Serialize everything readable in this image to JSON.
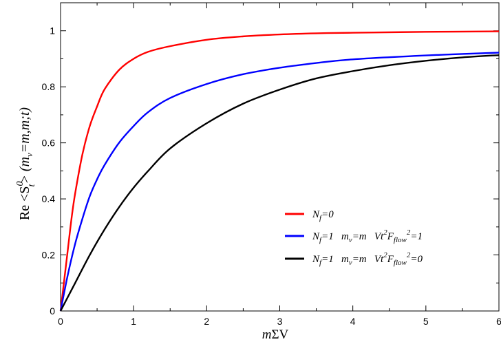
{
  "chart_data": {
    "type": "line",
    "xlabel_parts": [
      "m",
      "ΣV"
    ],
    "ylabel_parts": [
      "Re <S",
      "0",
      "t",
      "> (m",
      "v",
      "=m,m;t)"
    ],
    "xlim": [
      0,
      6
    ],
    "ylim": [
      0,
      1.1
    ],
    "xticks": [
      0,
      1,
      2,
      3,
      4,
      5,
      6
    ],
    "yticks": [
      0,
      0.2,
      0.4,
      0.6,
      0.8,
      1
    ],
    "xtick_labels": [
      "0",
      "1",
      "2",
      "3",
      "4",
      "5",
      "6"
    ],
    "ytick_labels": [
      "0",
      "0.2",
      "0.4",
      "0.6",
      "0.8",
      "1"
    ],
    "grid": false,
    "legend_position": "lower-right",
    "series": [
      {
        "name": "N_f=0",
        "legend_parts": [
          "N",
          "f",
          "=0"
        ],
        "color": "#ff0000",
        "x": [
          0,
          0.05,
          0.1,
          0.15,
          0.2,
          0.3,
          0.4,
          0.5,
          0.6,
          0.8,
          1.0,
          1.2,
          1.5,
          2.0,
          2.5,
          3.0,
          3.5,
          4.0,
          5.0,
          6.0
        ],
        "y": [
          0,
          0.11,
          0.22,
          0.33,
          0.42,
          0.56,
          0.66,
          0.73,
          0.79,
          0.86,
          0.9,
          0.925,
          0.945,
          0.968,
          0.98,
          0.987,
          0.991,
          0.993,
          0.996,
          0.998
        ]
      },
      {
        "name": "N_f=1 m_v=m Vt^2F_flow^2=1",
        "legend_parts": [
          "N",
          "f",
          "=1   m",
          "v",
          "=m   Vt",
          "2",
          "F",
          "flow",
          "2",
          "=1"
        ],
        "color": "#0000ff",
        "x": [
          0,
          0.1,
          0.2,
          0.3,
          0.4,
          0.5,
          0.6,
          0.8,
          1.0,
          1.2,
          1.5,
          2.0,
          2.5,
          3.0,
          3.5,
          4.0,
          5.0,
          6.0
        ],
        "y": [
          0,
          0.13,
          0.24,
          0.33,
          0.41,
          0.47,
          0.52,
          0.6,
          0.66,
          0.71,
          0.76,
          0.81,
          0.845,
          0.868,
          0.885,
          0.898,
          0.912,
          0.922
        ]
      },
      {
        "name": "N_f=1 m_v=m Vt^2F_flow^2=0",
        "legend_parts": [
          "N",
          "f",
          "=1   m",
          "v",
          "=m   Vt",
          "2",
          "F",
          "flow",
          "2",
          "=0"
        ],
        "color": "#000000",
        "x": [
          0,
          0.2,
          0.4,
          0.6,
          0.8,
          1.0,
          1.2,
          1.5,
          2.0,
          2.5,
          3.0,
          3.5,
          4.0,
          4.5,
          5.0,
          5.5,
          6.0
        ],
        "y": [
          0,
          0.1,
          0.2,
          0.29,
          0.37,
          0.44,
          0.5,
          0.58,
          0.67,
          0.74,
          0.79,
          0.83,
          0.856,
          0.877,
          0.893,
          0.905,
          0.913
        ]
      }
    ]
  }
}
